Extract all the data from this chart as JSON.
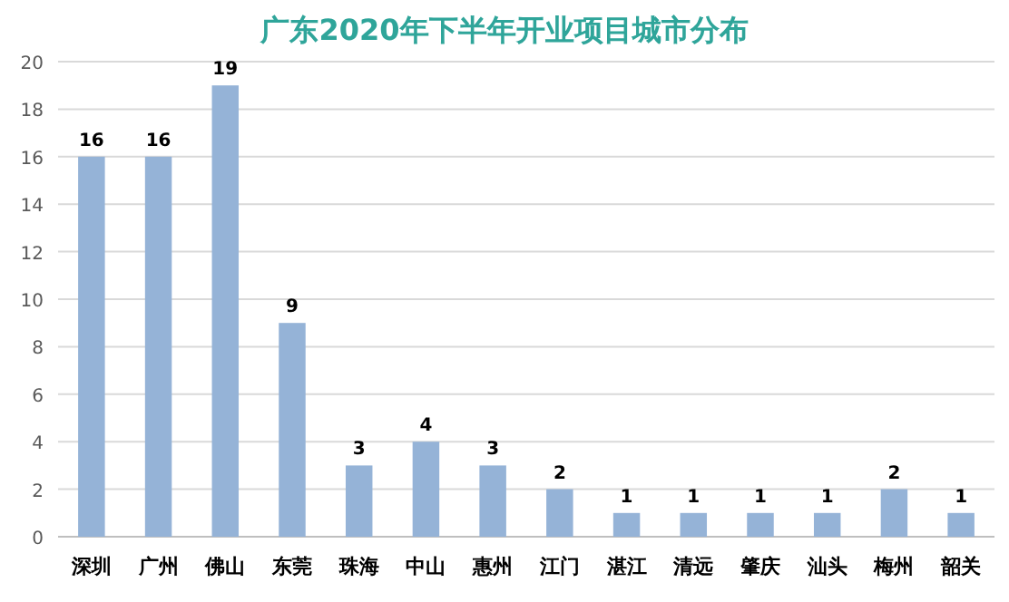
{
  "chart_data": {
    "type": "bar",
    "title": "广东2020年下半年开业项目城市分布",
    "categories": [
      "深圳",
      "广州",
      "佛山",
      "东莞",
      "珠海",
      "中山",
      "惠州",
      "江门",
      "湛江",
      "清远",
      "肇庆",
      "汕头",
      "梅州",
      "韶关"
    ],
    "values": [
      16,
      16,
      19,
      9,
      3,
      4,
      3,
      2,
      1,
      1,
      1,
      1,
      2,
      1
    ],
    "color": "#95b3d7",
    "ylim": [
      0,
      20
    ],
    "yticks": [
      0,
      2,
      4,
      6,
      8,
      10,
      12,
      14,
      16,
      18,
      20
    ],
    "grid": "y",
    "data_labels": true
  }
}
